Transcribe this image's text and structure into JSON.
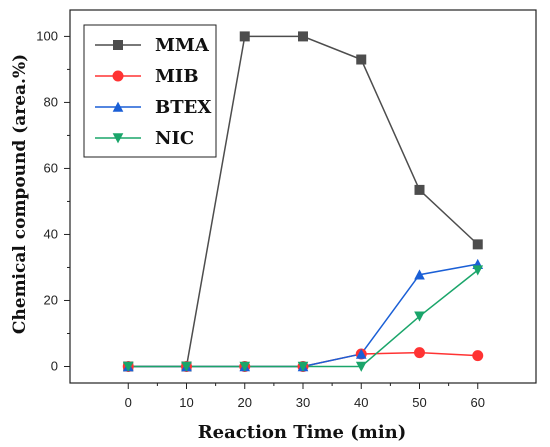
{
  "chart_data": {
    "type": "line",
    "title": "",
    "xlabel": "Reaction Time (min)",
    "ylabel": "Chemical compound (area.%)",
    "x": [
      0,
      10,
      20,
      30,
      40,
      50,
      60
    ],
    "xlim": [
      -10,
      70
    ],
    "ylim": [
      -5,
      108
    ],
    "xticks": [
      0,
      10,
      20,
      30,
      40,
      50,
      60
    ],
    "yticks": [
      0,
      20,
      40,
      60,
      80,
      100
    ],
    "grid": false,
    "legend_position": "top-left",
    "series": [
      {
        "name": "MMA",
        "color": "#4d4d4d",
        "marker": "square",
        "values": [
          0,
          0,
          100,
          100,
          93,
          53.5,
          37
        ]
      },
      {
        "name": "MIB",
        "color": "#ff3333",
        "marker": "circle",
        "values": [
          0,
          0,
          0,
          0,
          3.8,
          4.2,
          3.3
        ]
      },
      {
        "name": "BTEX",
        "color": "#1a5fd6",
        "marker": "triangle-up",
        "values": [
          0,
          0,
          0,
          0,
          3.8,
          27.8,
          31
        ]
      },
      {
        "name": "NIC",
        "color": "#1aa56a",
        "marker": "triangle-down",
        "values": [
          0,
          0,
          0,
          0,
          0,
          15.2,
          29.2
        ]
      }
    ]
  }
}
